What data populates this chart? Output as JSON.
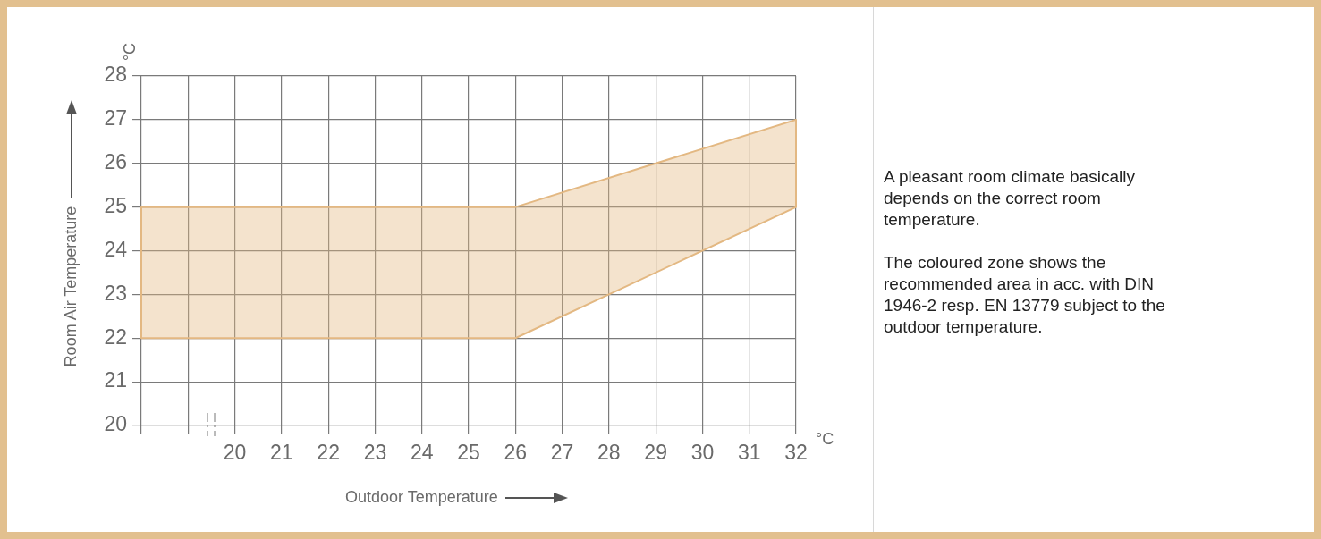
{
  "chart_data": {
    "type": "area",
    "xlabel": "Outdoor Temperature",
    "ylabel": "Room Air Temperature",
    "x": [
      18,
      26,
      32
    ],
    "series": [
      {
        "type": "line",
        "color": "#e3b882",
        "values": [
          22,
          22,
          25
        ]
      },
      {
        "color": "#e3b882",
        "values": [
          25,
          25,
          27
        ]
      }
    ],
    "xlim": [
      18,
      32
    ],
    "ylim": [
      20,
      28
    ],
    "xticks": [
      {
        "value": 18,
        "label": null
      },
      {
        "value": 19,
        "label": null
      },
      20,
      21,
      22,
      23,
      24,
      25,
      26,
      27,
      28,
      29,
      30,
      31,
      32
    ],
    "yticks": [
      20,
      21,
      22,
      23,
      24,
      25,
      26,
      27,
      28
    ],
    "grid": true,
    "legend": false,
    "annotations": [
      "°C",
      "°C",
      "A pleasant room climate basically depends on the correct room temperature.",
      "The coloured zone shows the recommended area in acc. with DIN 1946-2 resp. EN 13779 subject to the outdoor temperature."
    ]
  }
}
